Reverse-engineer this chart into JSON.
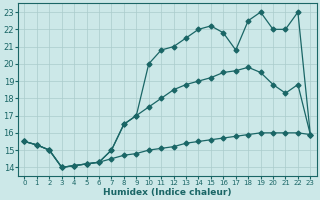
{
  "bg_color": "#cce8e8",
  "grid_color": "#aacccc",
  "line_color": "#1a6666",
  "xlabel": "Humidex (Indice chaleur)",
  "xlim": [
    -0.5,
    23.5
  ],
  "ylim": [
    13.5,
    23.5
  ],
  "x_ticks": [
    0,
    1,
    2,
    3,
    4,
    5,
    6,
    7,
    8,
    9,
    10,
    11,
    12,
    13,
    14,
    15,
    16,
    17,
    18,
    19,
    20,
    21,
    22,
    23
  ],
  "y_ticks": [
    14,
    15,
    16,
    17,
    18,
    19,
    20,
    21,
    22,
    23
  ],
  "line1_x": [
    0,
    1,
    2,
    3,
    4,
    5,
    6,
    7,
    8,
    9,
    10,
    11,
    12,
    13,
    14,
    15,
    16,
    17,
    18,
    19,
    20,
    21,
    22,
    23
  ],
  "line1_y": [
    15.5,
    15.3,
    15.0,
    14.0,
    14.1,
    14.2,
    14.3,
    14.5,
    14.7,
    14.8,
    15.0,
    15.1,
    15.2,
    15.4,
    15.5,
    15.6,
    15.7,
    15.8,
    15.9,
    16.0,
    16.0,
    16.0,
    16.0,
    15.9
  ],
  "line2_x": [
    0,
    1,
    2,
    3,
    4,
    5,
    6,
    7,
    8,
    9,
    10,
    11,
    12,
    13,
    14,
    15,
    16,
    17,
    18,
    19,
    20,
    21,
    22,
    23
  ],
  "line2_y": [
    15.5,
    15.3,
    15.0,
    14.0,
    14.1,
    14.2,
    14.3,
    15.0,
    16.5,
    17.0,
    17.5,
    18.0,
    18.5,
    18.8,
    19.0,
    19.2,
    19.5,
    19.6,
    19.8,
    19.5,
    18.8,
    18.3,
    18.8,
    15.9
  ],
  "line3_x": [
    0,
    1,
    2,
    3,
    4,
    5,
    6,
    7,
    8,
    9,
    10,
    11,
    12,
    13,
    14,
    15,
    16,
    17,
    18,
    19,
    20,
    21,
    22,
    23
  ],
  "line3_y": [
    15.5,
    15.3,
    15.0,
    14.0,
    14.1,
    14.2,
    14.3,
    15.0,
    16.5,
    17.0,
    20.0,
    20.8,
    21.0,
    21.5,
    22.0,
    22.2,
    21.8,
    20.8,
    22.5,
    23.0,
    22.0,
    22.0,
    23.0,
    15.9
  ]
}
